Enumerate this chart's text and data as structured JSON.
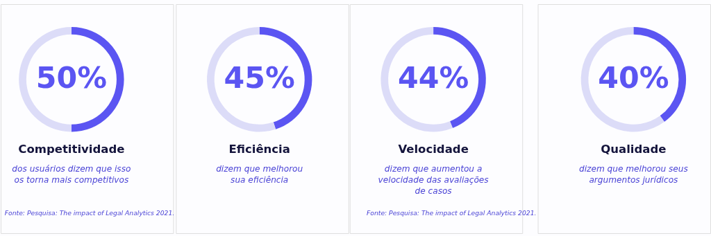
{
  "chart_data": [
    {
      "type": "donut",
      "title": "Competitividade",
      "subtitle": "dos usuários dizem que isso\nos torna mais competitivos",
      "categories": [
        null,
        null
      ],
      "values": [
        50,
        50
      ],
      "colors": [
        "#5b55f2",
        "#dcdcf8"
      ],
      "value_labels": [
        "50%",
        null
      ],
      "annotations": [
        "Fonte: Pesquisa: The impact of Legal Analytics 2021."
      ]
    },
    {
      "type": "donut",
      "title": "Eficiência",
      "subtitle": "dizem que melhorou\nsua eficiência",
      "categories": [
        null,
        null
      ],
      "values": [
        45,
        55
      ],
      "colors": [
        "#5b55f2",
        "#dcdcf8"
      ],
      "value_labels": [
        "45%",
        null
      ]
    },
    {
      "type": "donut",
      "title": "Velocidade",
      "subtitle": "dizem que aumentou a\nvelocidade das avaliações\nde casos",
      "categories": [
        null,
        null
      ],
      "values": [
        44,
        56
      ],
      "colors": [
        "#5b55f2",
        "#dcdcf8"
      ],
      "value_labels": [
        "44%",
        null
      ],
      "annotations": [
        "Fonte: Pesquisa: The impact of Legal Analytics 2021."
      ]
    },
    {
      "type": "donut",
      "title": "Qualidade",
      "subtitle": "dizem que melhorou seus\nargumentos jurídicos",
      "categories": [
        null,
        null
      ],
      "values": [
        40,
        60
      ],
      "colors": [
        "#5b55f2",
        "#dcdcf8"
      ],
      "value_labels": [
        "40%",
        null
      ]
    }
  ]
}
